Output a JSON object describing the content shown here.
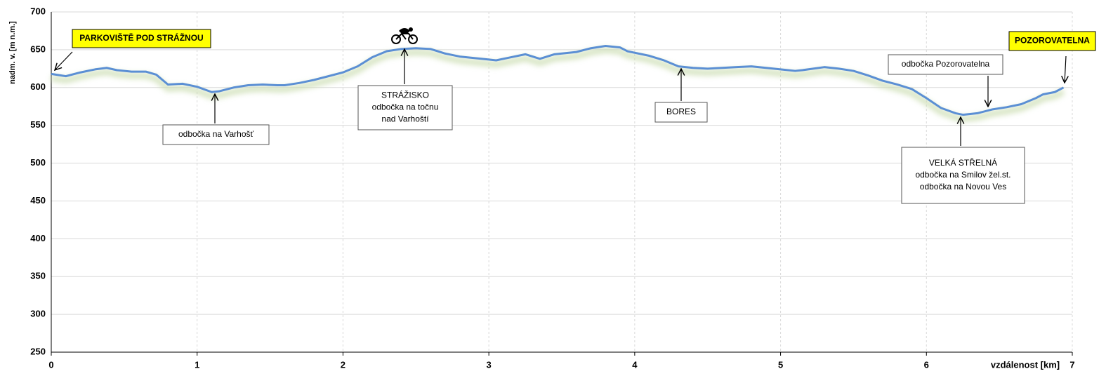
{
  "chart_data": {
    "type": "line",
    "xlabel": "vzdálenost [km]",
    "ylabel": "nadm. v. [m n.m.]",
    "xlim": [
      0,
      7
    ],
    "xticks": [
      0,
      1,
      2,
      3,
      4,
      5,
      6,
      7
    ],
    "ylim": [
      250,
      700
    ],
    "yticks": [
      250,
      300,
      350,
      400,
      450,
      500,
      550,
      600,
      650,
      700
    ],
    "grid": true,
    "series": [
      {
        "color": "#5b8fd4",
        "x": [
          0,
          0.1,
          0.2,
          0.3,
          0.38,
          0.45,
          0.55,
          0.65,
          0.72,
          0.8,
          0.9,
          1.0,
          1.1,
          1.15,
          1.25,
          1.35,
          1.45,
          1.55,
          1.6,
          1.7,
          1.8,
          1.9,
          2.0,
          2.1,
          2.2,
          2.3,
          2.4,
          2.5,
          2.6,
          2.7,
          2.8,
          2.9,
          3.0,
          3.05,
          3.15,
          3.25,
          3.35,
          3.45,
          3.6,
          3.7,
          3.8,
          3.9,
          3.95,
          4.1,
          4.2,
          4.3,
          4.4,
          4.5,
          4.6,
          4.7,
          4.8,
          4.9,
          5.0,
          5.1,
          5.15,
          5.3,
          5.4,
          5.5,
          5.6,
          5.7,
          5.8,
          5.9,
          6.0,
          6.1,
          6.2,
          6.25,
          6.35,
          6.45,
          6.55,
          6.65,
          6.75,
          6.8,
          6.88,
          6.94
        ],
        "values": [
          618,
          615,
          620,
          624,
          626,
          623,
          621,
          621,
          617,
          604,
          605,
          601,
          594,
          595,
          600,
          603,
          604,
          603,
          603,
          606,
          610,
          615,
          620,
          628,
          640,
          648,
          651,
          652,
          651,
          645,
          641,
          639,
          637,
          636,
          640,
          644,
          638,
          644,
          647,
          652,
          655,
          653,
          648,
          642,
          636,
          628,
          626,
          625,
          626,
          627,
          628,
          626,
          624,
          622,
          623,
          627,
          625,
          622,
          616,
          609,
          604,
          598,
          586,
          573,
          566,
          564,
          566,
          571,
          574,
          578,
          586,
          591,
          594,
          600
        ]
      }
    ],
    "annotations": [
      {
        "lines": [
          "PARKOVIŠTĚ POD STRÁŽNOU"
        ]
      },
      {
        "lines": [
          "POZOROVATELNA"
        ]
      },
      {
        "lines": [
          "odbočka na Varhošť"
        ]
      },
      {
        "lines": [
          "STRÁŽISKO",
          "odbočka na točnu",
          "nad Varhoští"
        ]
      },
      {
        "lines": [
          "BORES"
        ]
      },
      {
        "lines": [
          "odbočka Pozorovatelna"
        ]
      },
      {
        "lines": [
          "VELKÁ STŘELNÁ",
          "odbočka na Smilov žel.st.",
          "odbočka na Novou Ves"
        ]
      }
    ]
  }
}
